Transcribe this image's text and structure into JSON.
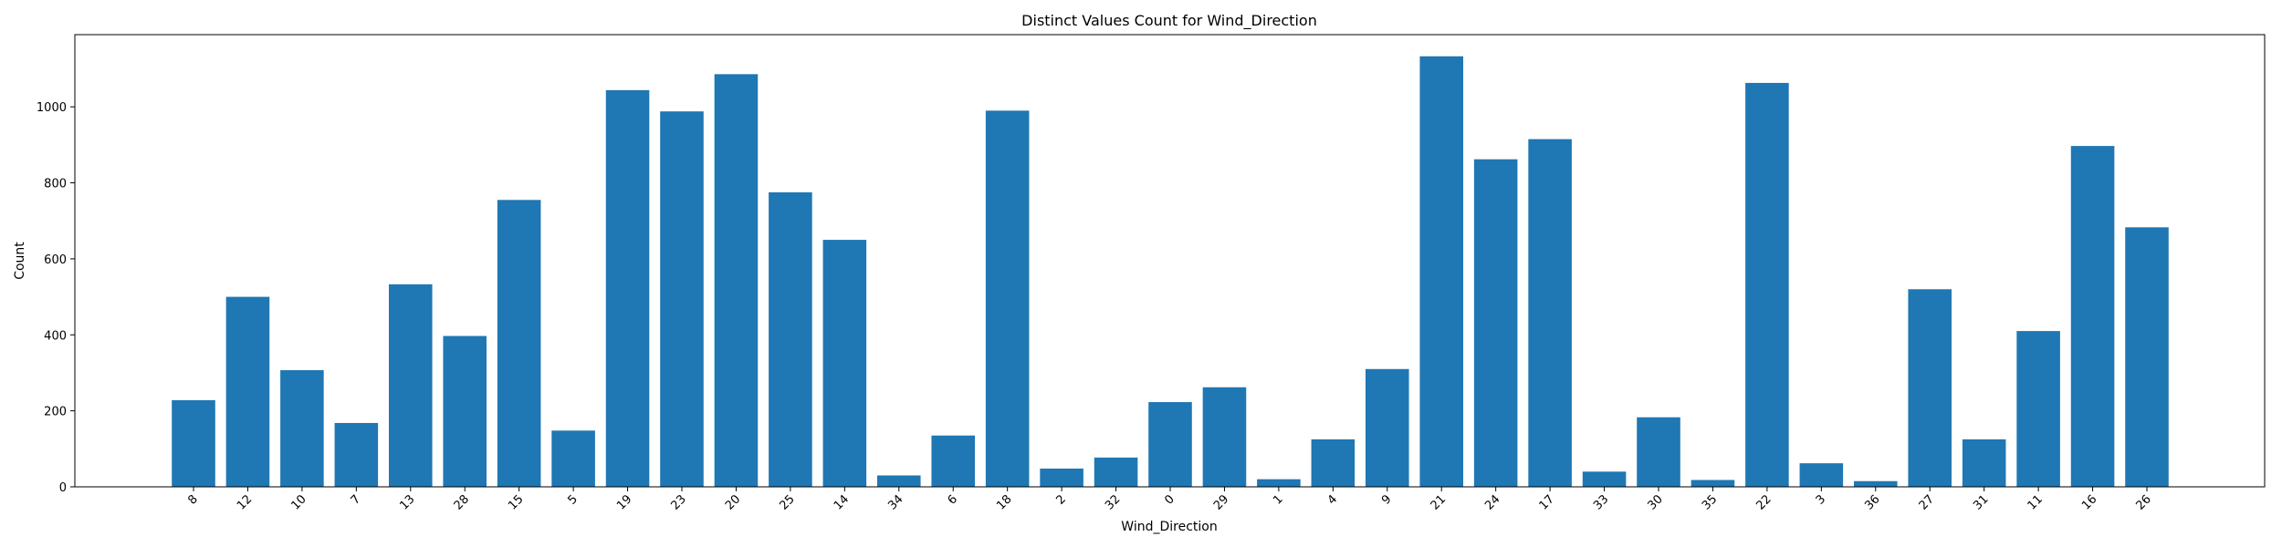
{
  "chart_data": {
    "type": "bar",
    "title": "Distinct Values Count for Wind_Direction",
    "xlabel": "Wind_Direction",
    "ylabel": "Count",
    "categories": [
      "8",
      "12",
      "10",
      "7",
      "13",
      "28",
      "15",
      "5",
      "19",
      "23",
      "20",
      "25",
      "14",
      "34",
      "6",
      "18",
      "2",
      "32",
      "0",
      "29",
      "1",
      "4",
      "9",
      "21",
      "24",
      "17",
      "33",
      "30",
      "35",
      "22",
      "3",
      "36",
      "27",
      "31",
      "11",
      "16",
      "26"
    ],
    "values": [
      228,
      500,
      307,
      168,
      533,
      397,
      755,
      148,
      1044,
      988,
      1086,
      775,
      650,
      30,
      135,
      990,
      48,
      77,
      223,
      262,
      20,
      125,
      310,
      1133,
      862,
      915,
      40,
      183,
      18,
      1063,
      62,
      15,
      520,
      125,
      410,
      897,
      683
    ],
    "ylim": [
      0,
      1190
    ],
    "yticks": [
      0,
      200,
      400,
      600,
      800,
      1000
    ],
    "grid": false,
    "legend": "none",
    "colors": {
      "bar": "#1f77b4",
      "axis": "#000000"
    }
  }
}
